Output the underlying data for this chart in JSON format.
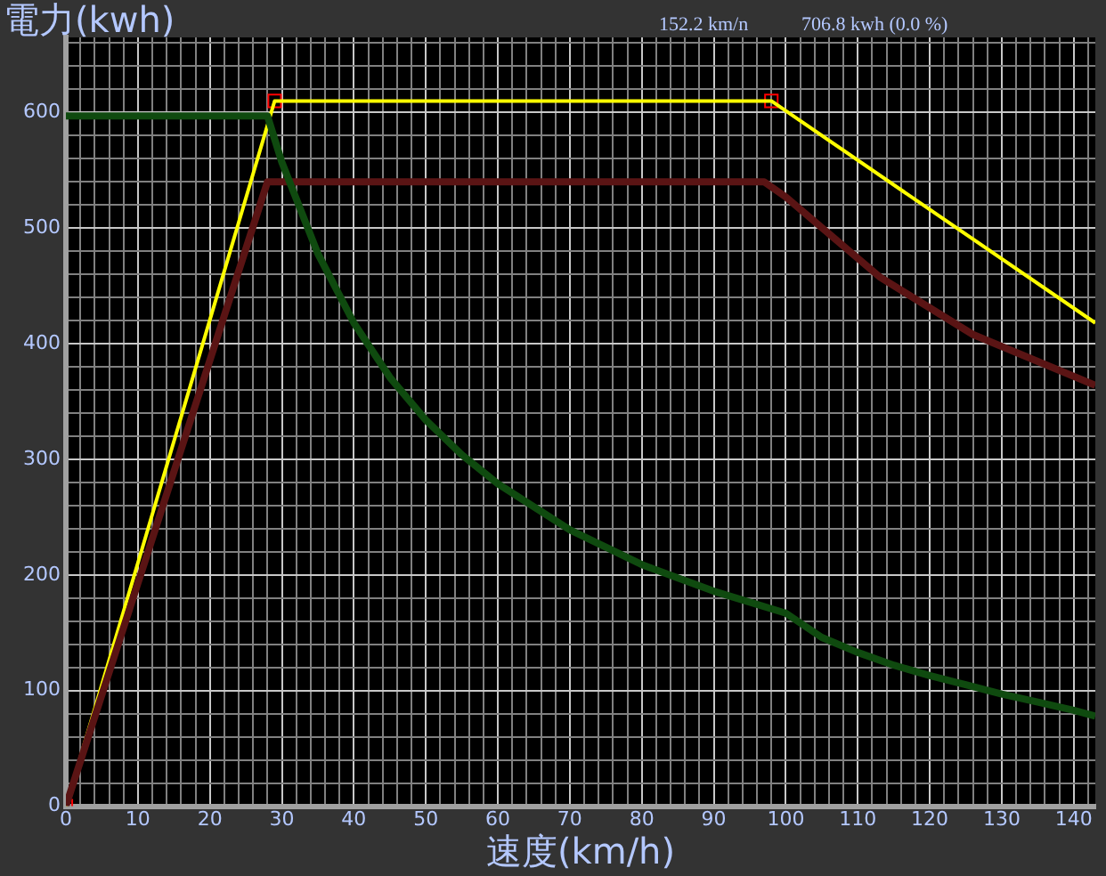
{
  "chart_data": {
    "type": "line",
    "ylabel": "電力(kwh)",
    "xlabel": "速度(km/h)",
    "annotations": [
      "152.2 km/n",
      "706.8 kwh (0.0 %)"
    ],
    "xlim": [
      0,
      143
    ],
    "ylim": [
      0,
      665
    ],
    "grid": true,
    "xticks": [
      0,
      {
        "value": 2,
        "label": null
      },
      {
        "value": 4,
        "label": null
      },
      {
        "value": 6,
        "label": null
      },
      {
        "value": 8,
        "label": null
      },
      10,
      {
        "value": 12,
        "label": null
      },
      {
        "value": 14,
        "label": null
      },
      {
        "value": 16,
        "label": null
      },
      {
        "value": 18,
        "label": null
      },
      20,
      {
        "value": 22,
        "label": null
      },
      {
        "value": 24,
        "label": null
      },
      {
        "value": 26,
        "label": null
      },
      {
        "value": 28,
        "label": null
      },
      30,
      {
        "value": 32,
        "label": null
      },
      {
        "value": 34,
        "label": null
      },
      {
        "value": 36,
        "label": null
      },
      {
        "value": 38,
        "label": null
      },
      40,
      {
        "value": 42,
        "label": null
      },
      {
        "value": 44,
        "label": null
      },
      {
        "value": 46,
        "label": null
      },
      {
        "value": 48,
        "label": null
      },
      50,
      {
        "value": 52,
        "label": null
      },
      {
        "value": 54,
        "label": null
      },
      {
        "value": 56,
        "label": null
      },
      {
        "value": 58,
        "label": null
      },
      60,
      {
        "value": 62,
        "label": null
      },
      {
        "value": 64,
        "label": null
      },
      {
        "value": 66,
        "label": null
      },
      {
        "value": 68,
        "label": null
      },
      70,
      {
        "value": 72,
        "label": null
      },
      {
        "value": 74,
        "label": null
      },
      {
        "value": 76,
        "label": null
      },
      {
        "value": 78,
        "label": null
      },
      80,
      {
        "value": 82,
        "label": null
      },
      {
        "value": 84,
        "label": null
      },
      {
        "value": 86,
        "label": null
      },
      {
        "value": 88,
        "label": null
      },
      90,
      {
        "value": 92,
        "label": null
      },
      {
        "value": 94,
        "label": null
      },
      {
        "value": 96,
        "label": null
      },
      {
        "value": 98,
        "label": null
      },
      100,
      {
        "value": 102,
        "label": null
      },
      {
        "value": 104,
        "label": null
      },
      {
        "value": 106,
        "label": null
      },
      {
        "value": 108,
        "label": null
      },
      110,
      {
        "value": 112,
        "label": null
      },
      {
        "value": 114,
        "label": null
      },
      {
        "value": 116,
        "label": null
      },
      {
        "value": 118,
        "label": null
      },
      120,
      {
        "value": 122,
        "label": null
      },
      {
        "value": 124,
        "label": null
      },
      {
        "value": 126,
        "label": null
      },
      {
        "value": 128,
        "label": null
      },
      130,
      {
        "value": 132,
        "label": null
      },
      {
        "value": 134,
        "label": null
      },
      {
        "value": 136,
        "label": null
      },
      {
        "value": 138,
        "label": null
      },
      140,
      {
        "value": 142,
        "label": null
      }
    ],
    "yticks": [
      0,
      {
        "value": 20,
        "label": null
      },
      {
        "value": 40,
        "label": null
      },
      {
        "value": 60,
        "label": null
      },
      {
        "value": 80,
        "label": null
      },
      100,
      {
        "value": 120,
        "label": null
      },
      {
        "value": 140,
        "label": null
      },
      {
        "value": 160,
        "label": null
      },
      {
        "value": 180,
        "label": null
      },
      200,
      {
        "value": 220,
        "label": null
      },
      {
        "value": 240,
        "label": null
      },
      {
        "value": 260,
        "label": null
      },
      {
        "value": 280,
        "label": null
      },
      300,
      {
        "value": 320,
        "label": null
      },
      {
        "value": 340,
        "label": null
      },
      {
        "value": 360,
        "label": null
      },
      {
        "value": 380,
        "label": null
      },
      400,
      {
        "value": 420,
        "label": null
      },
      {
        "value": 440,
        "label": null
      },
      {
        "value": 460,
        "label": null
      },
      {
        "value": 480,
        "label": null
      },
      500,
      {
        "value": 520,
        "label": null
      },
      {
        "value": 540,
        "label": null
      },
      {
        "value": 560,
        "label": null
      },
      {
        "value": 580,
        "label": null
      },
      600,
      {
        "value": 620,
        "label": null
      },
      {
        "value": 640,
        "label": null
      },
      {
        "value": 660,
        "label": null
      }
    ],
    "series": [
      {
        "type": "line",
        "marker": "none",
        "color": "#0f4a0f",
        "x": [
          0,
          28,
          30,
          35,
          40,
          45,
          50,
          55,
          60,
          70,
          80,
          90,
          100,
          105,
          110,
          115,
          120,
          125,
          130,
          135,
          140,
          143
        ],
        "values": [
          597,
          597,
          557,
          478,
          418,
          371,
          334,
          304,
          279,
          239,
          209,
          186,
          167,
          146,
          133,
          122,
          113,
          105,
          97,
          90,
          83,
          78
        ]
      },
      {
        "type": "line",
        "marker": "none",
        "color": "#5a1414",
        "x": [
          0,
          28,
          97,
          100,
          113,
          126,
          143
        ],
        "values": [
          0,
          540,
          540,
          527,
          458,
          408,
          364
        ]
      },
      {
        "type": "line",
        "marker": "none",
        "color": "#ffff00",
        "x": [
          0,
          29,
          98,
          143
        ],
        "values": [
          0,
          610,
          610,
          418
        ]
      },
      {
        "type": "scatter",
        "marker": "square",
        "color": "#ff0000",
        "x": [
          0,
          29,
          98
        ],
        "values": [
          0,
          610,
          610
        ]
      }
    ]
  }
}
